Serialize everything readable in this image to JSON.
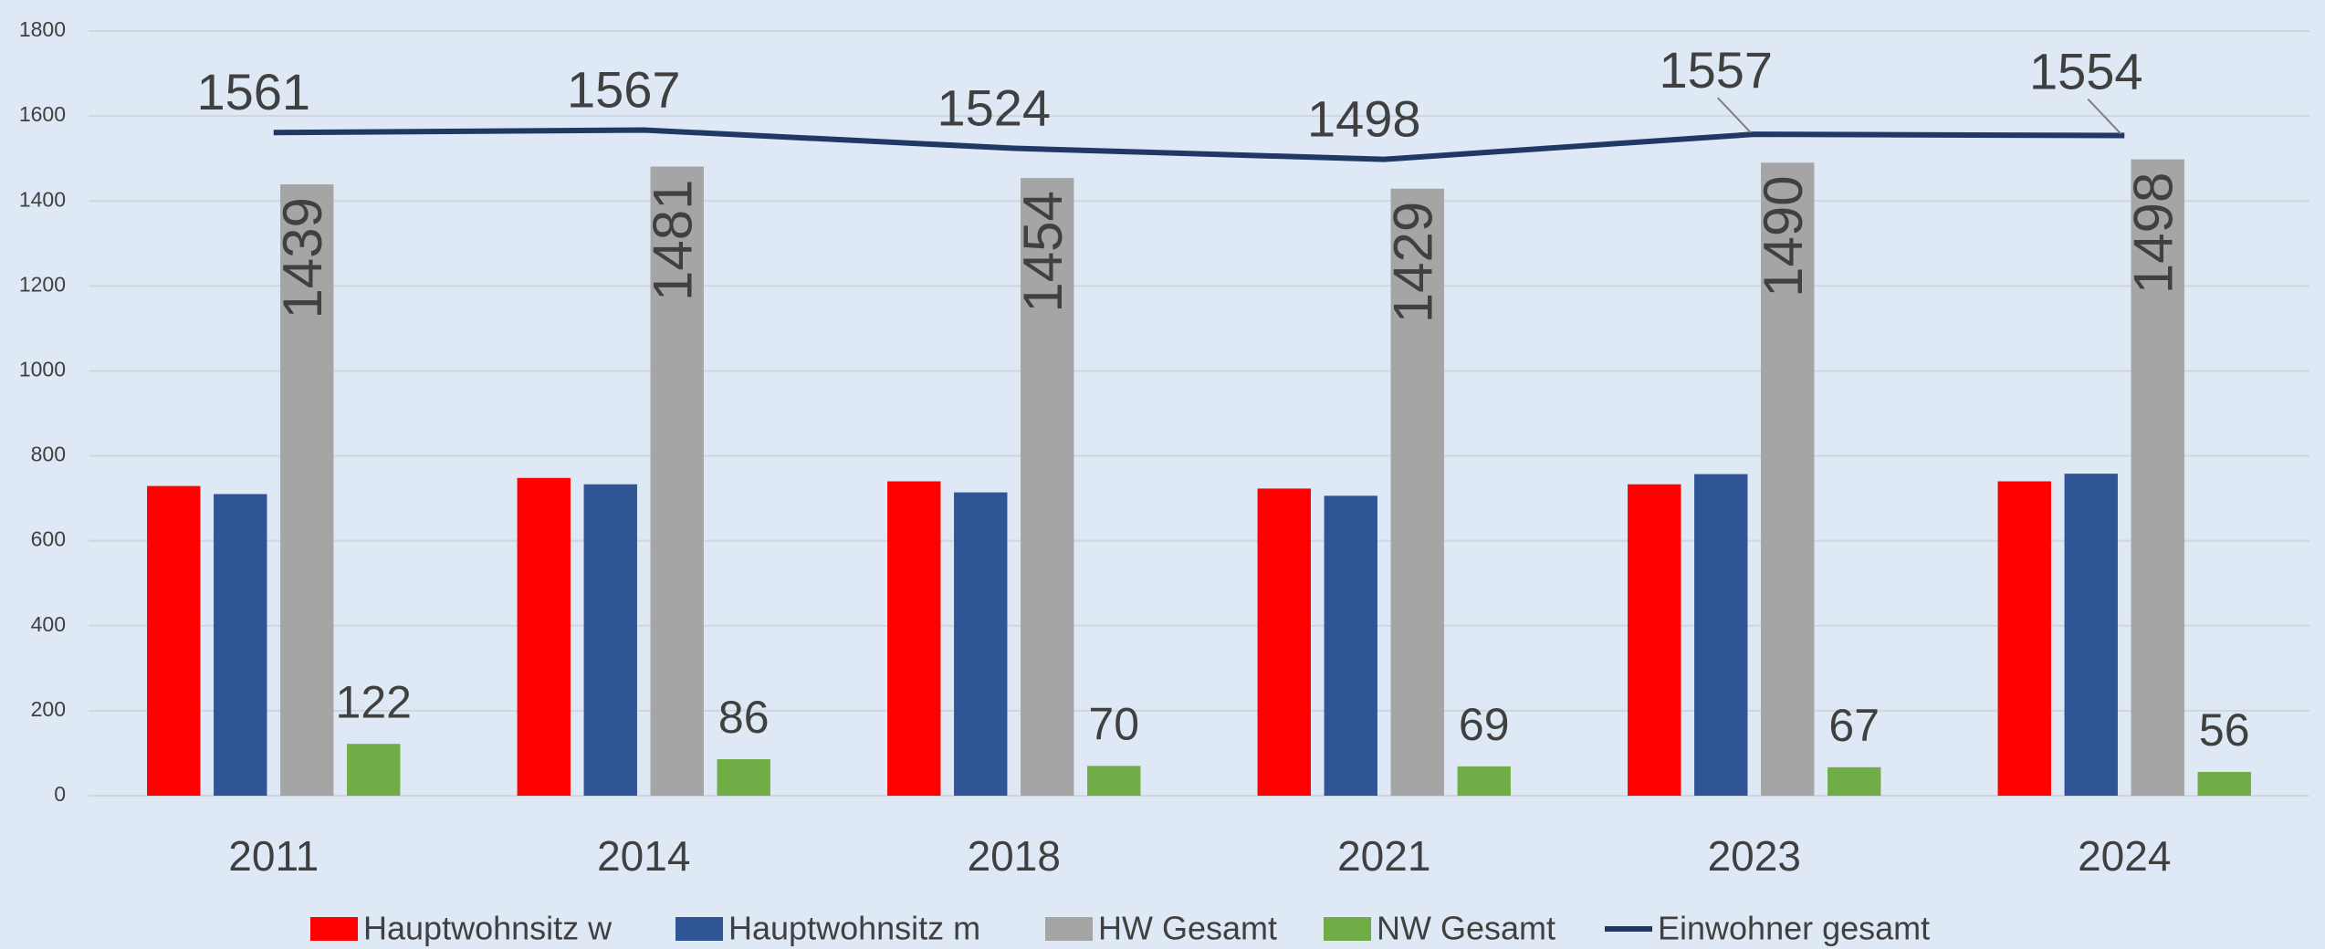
{
  "chart_data": {
    "type": "bar",
    "categories": [
      "2011",
      "2014",
      "2018",
      "2021",
      "2023",
      "2024"
    ],
    "series": [
      {
        "name": "Hauptwohnsitz w",
        "color": "#ff0000",
        "values": [
          729,
          748,
          740,
          723,
          733,
          740
        ]
      },
      {
        "name": "Hauptwohnsitz m",
        "color": "#2f5597",
        "values": [
          710,
          733,
          714,
          706,
          757,
          758
        ]
      },
      {
        "name": "HW Gesamt",
        "color": "#a5a5a5",
        "values": [
          1439,
          1481,
          1454,
          1429,
          1490,
          1498
        ]
      },
      {
        "name": "NW Gesamt",
        "color": "#70ad47",
        "values": [
          122,
          86,
          70,
          69,
          67,
          56
        ]
      },
      {
        "name": "Einwohner gesamt",
        "color": "#203864",
        "type": "line",
        "values": [
          1561,
          1567,
          1524,
          1498,
          1557,
          1554
        ]
      }
    ],
    "ylim": [
      0,
      1800
    ],
    "yticks": [
      0,
      200,
      400,
      600,
      800,
      1000,
      1200,
      1400,
      1600,
      1800
    ],
    "grid": true,
    "legend": "bottom"
  }
}
